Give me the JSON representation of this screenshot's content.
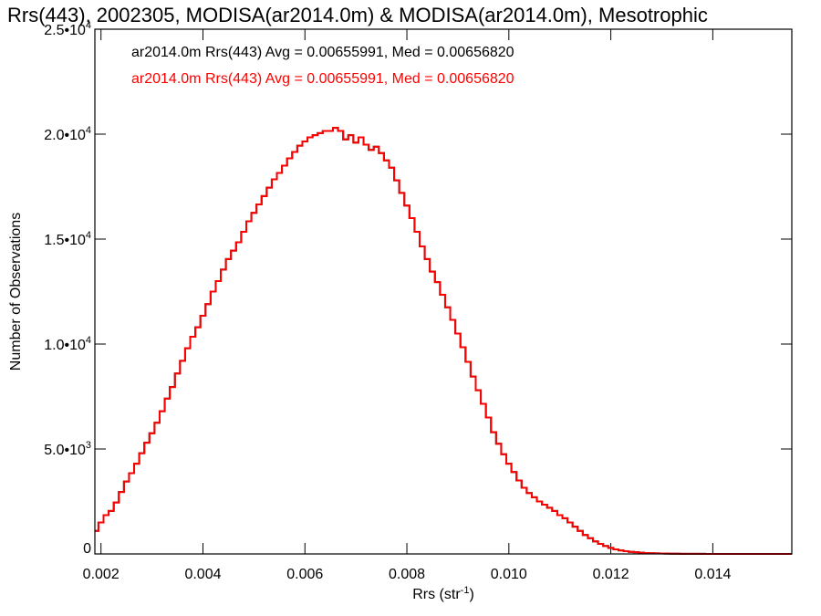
{
  "chart_data": {
    "type": "line",
    "style": "step-histogram",
    "title": "Rrs(443), 2002305, MODISA(ar2014.0m) & MODISA(ar2014.0m), Mesotrophic",
    "xlabel": "Rrs (str",
    "xlabel_exponent": "-1",
    "xlabel_suffix": ")",
    "ylabel": "Number of Observations",
    "xlim": [
      0.00188,
      0.01555
    ],
    "ylim": [
      0,
      25000
    ],
    "x_ticks": [
      {
        "value": 0.002,
        "label": "0.002"
      },
      {
        "value": 0.004,
        "label": "0.004"
      },
      {
        "value": 0.006,
        "label": "0.006"
      },
      {
        "value": 0.008,
        "label": "0.008"
      },
      {
        "value": 0.01,
        "label": "0.010"
      },
      {
        "value": 0.012,
        "label": "0.012"
      },
      {
        "value": 0.014,
        "label": "0.014"
      }
    ],
    "y_ticks": [
      {
        "value": 0,
        "mantissa": "0",
        "exponent": ""
      },
      {
        "value": 5000,
        "mantissa": "5.0•10",
        "exponent": "3"
      },
      {
        "value": 10000,
        "mantissa": "1.0•10",
        "exponent": "4"
      },
      {
        "value": 15000,
        "mantissa": "1.5•10",
        "exponent": "4"
      },
      {
        "value": 20000,
        "mantissa": "2.0•10",
        "exponent": "4"
      },
      {
        "value": 25000,
        "mantissa": "2.5•10",
        "exponent": "4"
      }
    ],
    "legend_placement": "top-left",
    "series": [
      {
        "name": "ar2014.0m Rrs(443) Avg = 0.00655991, Med = 0.00656820",
        "color": "#000000",
        "points": [
          [
            0.0019,
            1100
          ],
          [
            0.002,
            1500
          ],
          [
            0.0021,
            1850
          ],
          [
            0.0022,
            2050
          ],
          [
            0.0023,
            2450
          ],
          [
            0.0024,
            2950
          ],
          [
            0.0025,
            3450
          ],
          [
            0.0026,
            3850
          ],
          [
            0.0027,
            4300
          ],
          [
            0.0028,
            4800
          ],
          [
            0.0029,
            5300
          ],
          [
            0.003,
            5750
          ],
          [
            0.0031,
            6250
          ],
          [
            0.0032,
            6800
          ],
          [
            0.0033,
            7400
          ],
          [
            0.0034,
            7950
          ],
          [
            0.0035,
            8600
          ],
          [
            0.0036,
            9200
          ],
          [
            0.0037,
            9800
          ],
          [
            0.0038,
            10350
          ],
          [
            0.0039,
            10800
          ],
          [
            0.004,
            11350
          ],
          [
            0.0041,
            11900
          ],
          [
            0.0042,
            12500
          ],
          [
            0.0043,
            13000
          ],
          [
            0.0044,
            13550
          ],
          [
            0.0045,
            14050
          ],
          [
            0.0046,
            14450
          ],
          [
            0.0047,
            14850
          ],
          [
            0.0048,
            15350
          ],
          [
            0.0049,
            15850
          ],
          [
            0.005,
            16250
          ],
          [
            0.0051,
            16650
          ],
          [
            0.0052,
            17050
          ],
          [
            0.0053,
            17450
          ],
          [
            0.0054,
            17850
          ],
          [
            0.0055,
            18150
          ],
          [
            0.0056,
            18500
          ],
          [
            0.0057,
            18850
          ],
          [
            0.0058,
            19150
          ],
          [
            0.0059,
            19450
          ],
          [
            0.006,
            19650
          ],
          [
            0.0061,
            19850
          ],
          [
            0.0062,
            19950
          ],
          [
            0.0063,
            20050
          ],
          [
            0.0064,
            20150
          ],
          [
            0.0065,
            20150
          ],
          [
            0.0066,
            20300
          ],
          [
            0.0067,
            20150
          ],
          [
            0.0068,
            19750
          ],
          [
            0.0069,
            19950
          ],
          [
            0.007,
            19600
          ],
          [
            0.0071,
            19850
          ],
          [
            0.0072,
            19500
          ],
          [
            0.0073,
            19250
          ],
          [
            0.0074,
            19400
          ],
          [
            0.0075,
            19100
          ],
          [
            0.0076,
            18750
          ],
          [
            0.0077,
            18400
          ],
          [
            0.0078,
            17800
          ],
          [
            0.0079,
            17200
          ],
          [
            0.008,
            16600
          ],
          [
            0.0081,
            16000
          ],
          [
            0.0082,
            15350
          ],
          [
            0.0083,
            14650
          ],
          [
            0.0084,
            14050
          ],
          [
            0.0085,
            13450
          ],
          [
            0.0086,
            12950
          ],
          [
            0.0087,
            12350
          ],
          [
            0.0088,
            11750
          ],
          [
            0.0089,
            11150
          ],
          [
            0.009,
            10500
          ],
          [
            0.0091,
            9850
          ],
          [
            0.0092,
            9150
          ],
          [
            0.0093,
            8450
          ],
          [
            0.0094,
            7800
          ],
          [
            0.0095,
            7150
          ],
          [
            0.0096,
            6500
          ],
          [
            0.0097,
            5800
          ],
          [
            0.0098,
            5250
          ],
          [
            0.0099,
            4750
          ],
          [
            0.01,
            4300
          ],
          [
            0.0101,
            3900
          ],
          [
            0.0102,
            3500
          ],
          [
            0.0103,
            3150
          ],
          [
            0.0104,
            2900
          ],
          [
            0.0105,
            2700
          ],
          [
            0.0106,
            2500
          ],
          [
            0.0107,
            2350
          ],
          [
            0.0108,
            2200
          ],
          [
            0.0109,
            2050
          ],
          [
            0.011,
            1850
          ],
          [
            0.0111,
            1700
          ],
          [
            0.0112,
            1500
          ],
          [
            0.0113,
            1300
          ],
          [
            0.0114,
            1100
          ],
          [
            0.0115,
            900
          ],
          [
            0.0116,
            750
          ],
          [
            0.0117,
            600
          ],
          [
            0.0118,
            480
          ],
          [
            0.0119,
            380
          ],
          [
            0.012,
            290
          ],
          [
            0.0121,
            220
          ],
          [
            0.0122,
            170
          ],
          [
            0.0123,
            130
          ],
          [
            0.0124,
            100
          ],
          [
            0.0125,
            80
          ],
          [
            0.0126,
            60
          ],
          [
            0.0127,
            45
          ],
          [
            0.0128,
            35
          ],
          [
            0.0129,
            28
          ],
          [
            0.013,
            22
          ],
          [
            0.0131,
            17
          ],
          [
            0.0132,
            13
          ],
          [
            0.0133,
            10
          ],
          [
            0.0134,
            8
          ],
          [
            0.0135,
            6
          ],
          [
            0.0136,
            5
          ],
          [
            0.0137,
            4
          ],
          [
            0.0138,
            3
          ],
          [
            0.0139,
            2
          ],
          [
            0.014,
            2
          ],
          [
            0.0141,
            1
          ],
          [
            0.0142,
            1
          ],
          [
            0.0143,
            1
          ],
          [
            0.0144,
            0
          ],
          [
            0.0145,
            0
          ],
          [
            0.0146,
            0
          ],
          [
            0.0147,
            0
          ],
          [
            0.0148,
            0
          ],
          [
            0.0149,
            0
          ],
          [
            0.015,
            0
          ],
          [
            0.0151,
            0
          ],
          [
            0.0152,
            0
          ],
          [
            0.0153,
            0
          ],
          [
            0.0154,
            0
          ],
          [
            0.0155,
            0
          ]
        ]
      },
      {
        "name": "ar2014.0m Rrs(443) Avg = 0.00655991, Med = 0.00656820",
        "color": "#ff0000",
        "same_points_as_series": 0
      }
    ]
  }
}
